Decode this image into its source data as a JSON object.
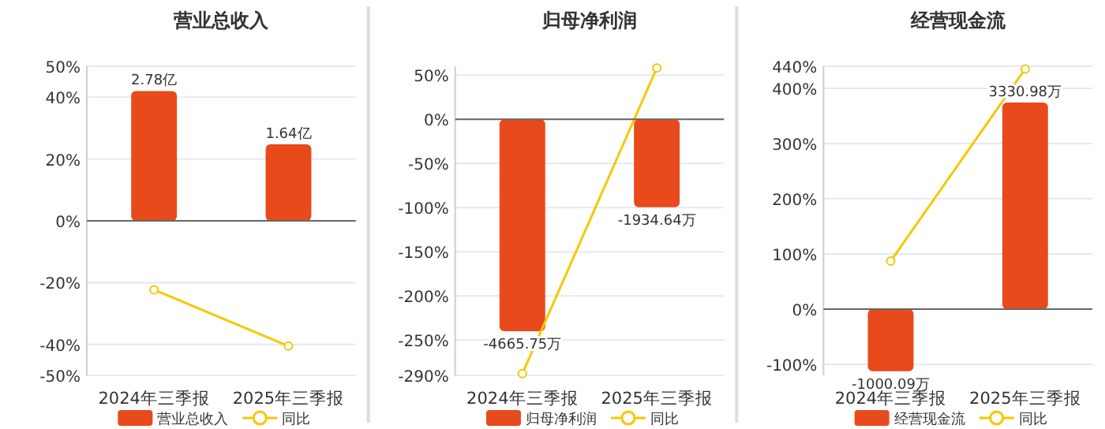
{
  "chart_data": [
    {
      "type": "bar",
      "title": "营业总收入",
      "categories": [
        "2024年三季报",
        "2025年三季报"
      ],
      "series": [
        {
          "name": "营业总收入",
          "axis": "y2",
          "color": "#e84a1b",
          "values": [
            2.78,
            1.64
          ],
          "value_labels": [
            "2.78亿",
            "1.64亿"
          ]
        },
        {
          "name": "同比",
          "type": "line",
          "color": "#f5c800",
          "marker": "circle",
          "values": [
            -22.3,
            -40.5
          ]
        }
      ],
      "ylim": [
        -50,
        50
      ],
      "yticks": [
        {
          "value": -50,
          "label": "-50%"
        },
        {
          "value": -40,
          "label": "-40%"
        },
        {
          "value": -20,
          "label": "-20%"
        },
        {
          "value": 0,
          "label": "0%"
        },
        {
          "value": 20,
          "label": "20%"
        },
        {
          "value": 40,
          "label": "40%"
        },
        {
          "value": 50,
          "label": "50%"
        }
      ],
      "y2lim": [
        -3.31,
        3.31
      ],
      "grid": "y",
      "legend": "bottom"
    },
    {
      "type": "bar",
      "title": "归母净利润",
      "categories": [
        "2024年三季报",
        "2025年三季报"
      ],
      "series": [
        {
          "name": "归母净利润",
          "axis": "y2",
          "color": "#e84a1b",
          "values": [
            -4665.75,
            -1934.64
          ],
          "value_labels": [
            "-4665.75万",
            "-1934.64万"
          ]
        },
        {
          "name": "同比",
          "type": "line",
          "color": "#f5c800",
          "marker": "circle",
          "values": [
            -288,
            58
          ]
        }
      ],
      "ylim": [
        -290,
        60
      ],
      "yticks": [
        {
          "value": -290,
          "label": "-290%"
        },
        {
          "value": -250,
          "label": "-250%"
        },
        {
          "value": -200,
          "label": "-200%"
        },
        {
          "value": -150,
          "label": "-150%"
        },
        {
          "value": -100,
          "label": "-100%"
        },
        {
          "value": -50,
          "label": "-50%"
        },
        {
          "value": 0,
          "label": "0%"
        },
        {
          "value": 50,
          "label": "50%"
        }
      ],
      "y2lim": [
        -5638,
        1166
      ],
      "grid": "y",
      "legend": "bottom"
    },
    {
      "type": "bar",
      "title": "经营现金流",
      "categories": [
        "2024年三季报",
        "2025年三季报"
      ],
      "series": [
        {
          "name": "经营现金流",
          "axis": "y2",
          "color": "#e84a1b",
          "values": [
            -1000.09,
            3330.98
          ],
          "value_labels": [
            "-1000.09万",
            "3330.98万"
          ]
        },
        {
          "name": "同比",
          "type": "line",
          "color": "#f5c800",
          "marker": "circle",
          "values": [
            87,
            435
          ]
        }
      ],
      "ylim": [
        -120,
        440
      ],
      "yticks": [
        {
          "value": -100,
          "label": "-100%"
        },
        {
          "value": 0,
          "label": "0%"
        },
        {
          "value": 100,
          "label": "100%"
        },
        {
          "value": 200,
          "label": "200%"
        },
        {
          "value": 300,
          "label": "300%"
        },
        {
          "value": 400,
          "label": "400%"
        },
        {
          "value": 440,
          "label": "440%"
        }
      ],
      "y2lim": [
        -1068,
        3916
      ],
      "grid": "y",
      "legend": "bottom"
    }
  ]
}
